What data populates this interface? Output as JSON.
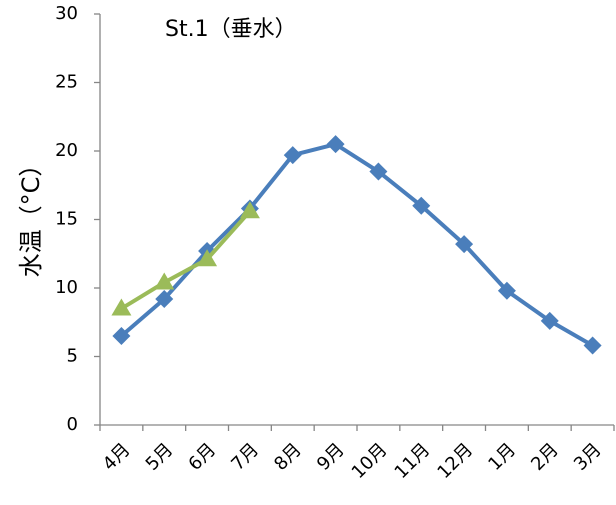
{
  "chart_data": {
    "type": "line",
    "title": "St.1（垂水）",
    "y_label": "水温（°C）",
    "categories": [
      "4月",
      "5月",
      "6月",
      "7月",
      "8月",
      "9月",
      "10月",
      "11月",
      "12月",
      "1月",
      "2月",
      "3月"
    ],
    "series": [
      {
        "color": "#4a7ebb",
        "marker": "diamond",
        "values": [
          6.5,
          9.2,
          12.7,
          15.8,
          19.7,
          20.5,
          18.5,
          16.0,
          13.2,
          9.8,
          7.6,
          5.8
        ]
      },
      {
        "color": "#9bbb59",
        "marker": "triangle",
        "values": [
          8.5,
          10.4,
          12.1,
          15.6,
          null,
          null,
          null,
          null,
          null,
          null,
          null,
          null
        ]
      }
    ],
    "ylim": [
      0,
      30
    ],
    "yticks": [
      0,
      5,
      10,
      15,
      20,
      25,
      30
    ],
    "grid": false
  }
}
